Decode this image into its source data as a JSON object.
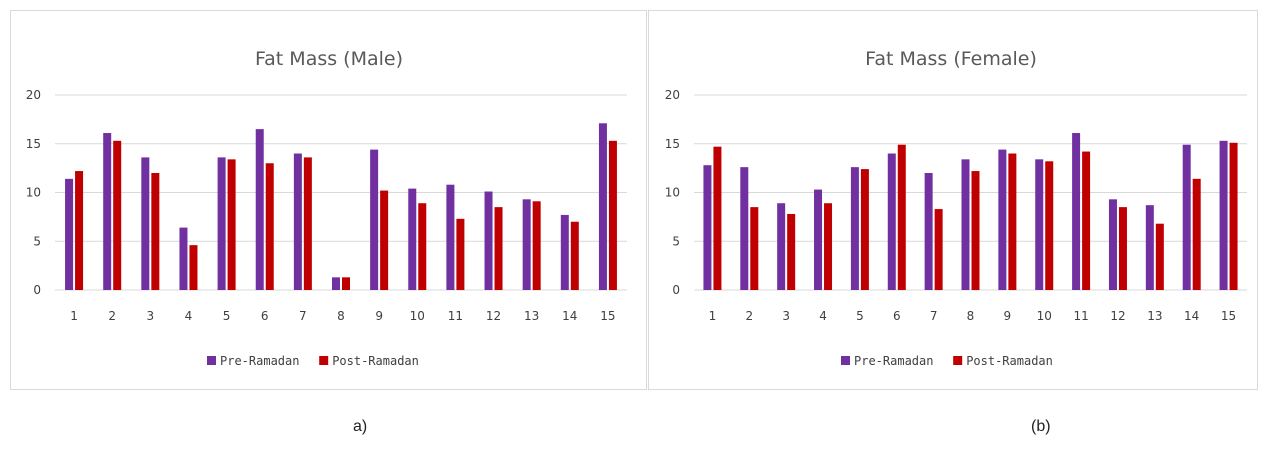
{
  "chart_data": [
    {
      "type": "bar",
      "title": "Fat Mass (Male)",
      "categories": [
        "1",
        "2",
        "3",
        "4",
        "5",
        "6",
        "7",
        "8",
        "9",
        "10",
        "11",
        "12",
        "13",
        "14",
        "15"
      ],
      "series": [
        {
          "name": "Pre-Ramadan",
          "color": "#7030a0",
          "values": [
            11.4,
            16.1,
            13.6,
            6.4,
            13.6,
            16.5,
            14.0,
            1.3,
            14.4,
            10.4,
            10.8,
            10.1,
            9.3,
            7.7,
            17.1
          ]
        },
        {
          "name": "Post-Ramadan",
          "color": "#c00000",
          "values": [
            12.2,
            15.3,
            12.0,
            4.6,
            13.4,
            13.0,
            13.6,
            1.3,
            10.2,
            8.9,
            7.3,
            8.5,
            9.1,
            7.0,
            15.3
          ]
        }
      ],
      "ylim": [
        0,
        20
      ],
      "yticks": [
        "0",
        "5",
        "10",
        "15",
        "20"
      ],
      "grid": true,
      "legend": "bottom",
      "caption": "a)"
    },
    {
      "type": "bar",
      "title": "Fat Mass (Female)",
      "categories": [
        "1",
        "2",
        "3",
        "4",
        "5",
        "6",
        "7",
        "8",
        "9",
        "10",
        "11",
        "12",
        "13",
        "14",
        "15"
      ],
      "series": [
        {
          "name": "Pre-Ramadan",
          "color": "#7030a0",
          "values": [
            12.8,
            12.6,
            8.9,
            10.3,
            12.6,
            14.0,
            12.0,
            13.4,
            14.4,
            13.4,
            16.1,
            9.3,
            8.7,
            14.9,
            15.3
          ]
        },
        {
          "name": "Post-Ramadan",
          "color": "#c00000",
          "values": [
            14.7,
            8.5,
            7.8,
            8.9,
            12.4,
            14.9,
            8.3,
            12.2,
            14.0,
            13.2,
            14.2,
            8.5,
            6.8,
            11.4,
            15.1
          ]
        }
      ],
      "ylim": [
        0,
        20
      ],
      "yticks": [
        "0",
        "5",
        "10",
        "15",
        "20"
      ],
      "grid": true,
      "legend": "bottom",
      "caption": "(b)"
    }
  ]
}
